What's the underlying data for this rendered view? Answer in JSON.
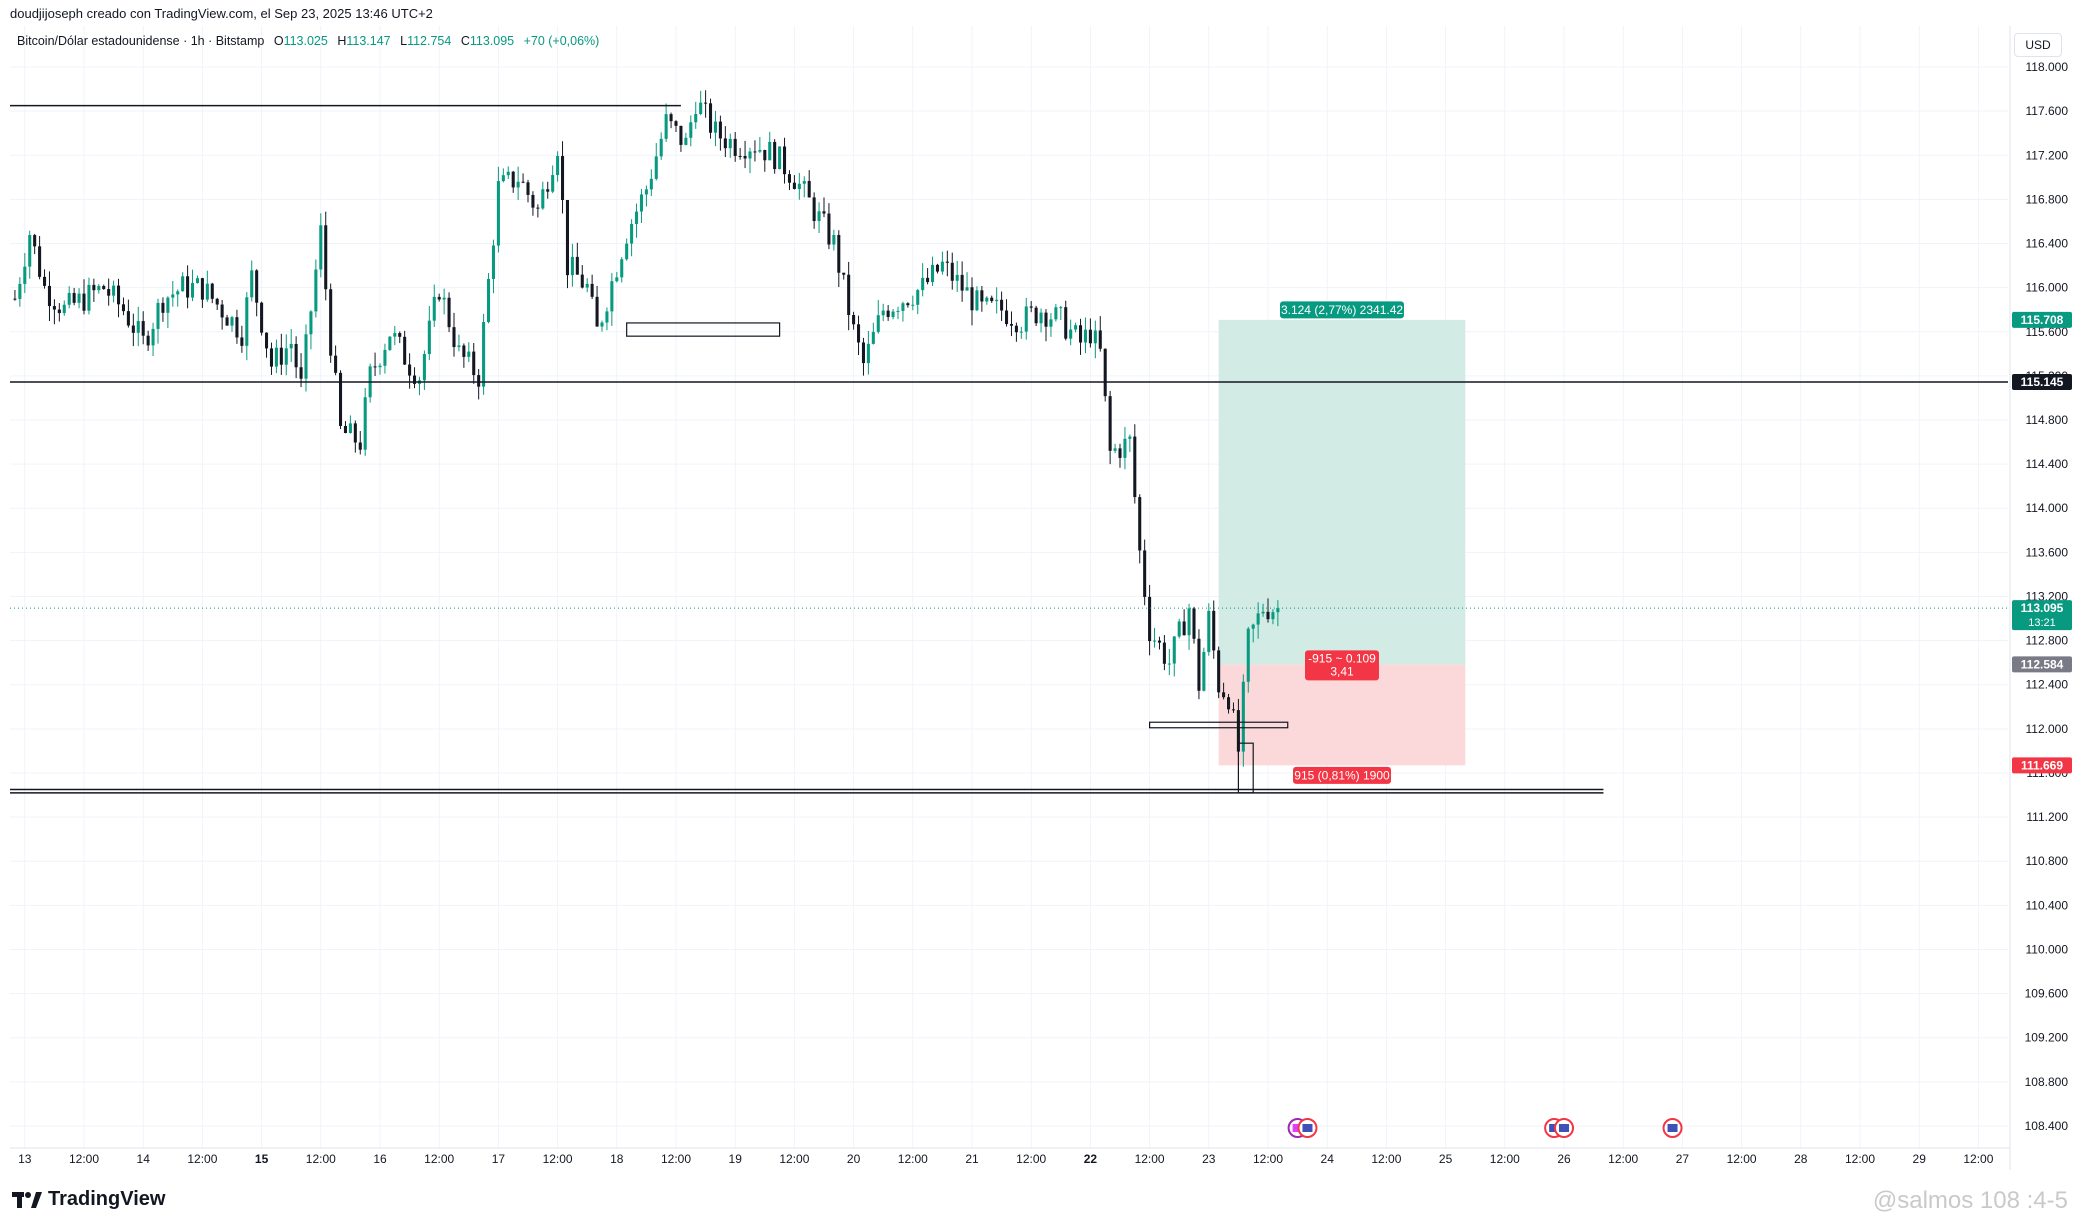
{
  "header": {
    "credit": "doudjijoseph creado con TradingView.com, el Sep 23, 2025 13:46 UTC+2"
  },
  "legend": {
    "symbol": "Bitcoin/Dólar estadounidense · 1h · Bitstamp",
    "open_label": "O",
    "open": "113.025",
    "high_label": "H",
    "high": "113.147",
    "low_label": "L",
    "low": "112.754",
    "close_label": "C",
    "close": "113.095",
    "change": "+70 (+0,06%)"
  },
  "currency": "USD",
  "chart_data": {
    "type": "candlestick",
    "y_ticks": [
      "118.000",
      "117.600",
      "117.200",
      "116.800",
      "116.400",
      "116.000",
      "115.600",
      "115.200",
      "114.800",
      "114.400",
      "114.000",
      "113.600",
      "113.200",
      "112.800",
      "112.400",
      "112.000",
      "111.600",
      "111.200",
      "110.800",
      "110.400",
      "110.000",
      "109.600",
      "109.200",
      "108.800",
      "108.400"
    ],
    "y_tick_values": [
      118000,
      117600,
      117200,
      116800,
      116400,
      116000,
      115600,
      115200,
      114800,
      114400,
      114000,
      113600,
      113200,
      112800,
      112400,
      112000,
      111600,
      111200,
      110800,
      110400,
      110000,
      109600,
      109200,
      108800,
      108400
    ],
    "x_ticks": [
      {
        "label": "13",
        "bold": false,
        "t": 0
      },
      {
        "label": "12:00",
        "bold": false,
        "t": 12
      },
      {
        "label": "14",
        "bold": false,
        "t": 24
      },
      {
        "label": "12:00",
        "bold": false,
        "t": 36
      },
      {
        "label": "15",
        "bold": true,
        "t": 48
      },
      {
        "label": "12:00",
        "bold": false,
        "t": 60
      },
      {
        "label": "16",
        "bold": false,
        "t": 72
      },
      {
        "label": "12:00",
        "bold": false,
        "t": 84
      },
      {
        "label": "17",
        "bold": false,
        "t": 96
      },
      {
        "label": "12:00",
        "bold": false,
        "t": 108
      },
      {
        "label": "18",
        "bold": false,
        "t": 120
      },
      {
        "label": "12:00",
        "bold": false,
        "t": 132
      },
      {
        "label": "19",
        "bold": false,
        "t": 144
      },
      {
        "label": "12:00",
        "bold": false,
        "t": 156
      },
      {
        "label": "20",
        "bold": false,
        "t": 168
      },
      {
        "label": "12:00",
        "bold": false,
        "t": 180
      },
      {
        "label": "21",
        "bold": false,
        "t": 192
      },
      {
        "label": "12:00",
        "bold": false,
        "t": 204
      },
      {
        "label": "22",
        "bold": true,
        "t": 216
      },
      {
        "label": "12:00",
        "bold": false,
        "t": 228
      },
      {
        "label": "23",
        "bold": false,
        "t": 240
      },
      {
        "label": "12:00",
        "bold": false,
        "t": 252
      },
      {
        "label": "24",
        "bold": false,
        "t": 264
      },
      {
        "label": "12:00",
        "bold": false,
        "t": 276
      },
      {
        "label": "25",
        "bold": false,
        "t": 288
      },
      {
        "label": "12:00",
        "bold": false,
        "t": 300
      },
      {
        "label": "26",
        "bold": false,
        "t": 312
      },
      {
        "label": "12:00",
        "bold": false,
        "t": 324
      },
      {
        "label": "27",
        "bold": false,
        "t": 336
      },
      {
        "label": "12:00",
        "bold": false,
        "t": 348
      },
      {
        "label": "28",
        "bold": false,
        "t": 360
      },
      {
        "label": "12:00",
        "bold": false,
        "t": 372
      },
      {
        "label": "29",
        "bold": false,
        "t": 384
      },
      {
        "label": "12:00",
        "bold": false,
        "t": 396
      }
    ],
    "x_range": [
      -3,
      402
    ],
    "y_range": [
      108200,
      118100
    ],
    "price_path": [
      [
        -2,
        115900
      ],
      [
        1,
        116500
      ],
      [
        4,
        116000
      ],
      [
        8,
        115800
      ],
      [
        12,
        115900
      ],
      [
        16,
        116000
      ],
      [
        20,
        115800
      ],
      [
        24,
        115500
      ],
      [
        28,
        115900
      ],
      [
        32,
        116000
      ],
      [
        36,
        116000
      ],
      [
        40,
        115800
      ],
      [
        44,
        115600
      ],
      [
        46,
        116100
      ],
      [
        50,
        115300
      ],
      [
        54,
        115500
      ],
      [
        56,
        115100
      ],
      [
        60,
        116500
      ],
      [
        62,
        115500
      ],
      [
        64,
        114700
      ],
      [
        68,
        114600
      ],
      [
        70,
        115200
      ],
      [
        74,
        115600
      ],
      [
        78,
        115300
      ],
      [
        80,
        115200
      ],
      [
        84,
        116000
      ],
      [
        88,
        115400
      ],
      [
        92,
        115200
      ],
      [
        96,
        116900
      ],
      [
        100,
        117000
      ],
      [
        104,
        116700
      ],
      [
        108,
        117300
      ],
      [
        110,
        116200
      ],
      [
        114,
        116000
      ],
      [
        116,
        115600
      ],
      [
        118,
        115900
      ],
      [
        122,
        116500
      ],
      [
        126,
        116900
      ],
      [
        130,
        117500
      ],
      [
        134,
        117300
      ],
      [
        136,
        117700
      ],
      [
        140,
        117400
      ],
      [
        144,
        117300
      ],
      [
        148,
        117300
      ],
      [
        152,
        117200
      ],
      [
        156,
        117000
      ],
      [
        160,
        116700
      ],
      [
        164,
        116400
      ],
      [
        168,
        115600
      ],
      [
        170,
        115300
      ],
      [
        174,
        115800
      ],
      [
        178,
        115900
      ],
      [
        182,
        116000
      ],
      [
        186,
        116200
      ],
      [
        190,
        116000
      ],
      [
        194,
        115800
      ],
      [
        198,
        115800
      ],
      [
        202,
        115700
      ],
      [
        206,
        115800
      ],
      [
        210,
        115700
      ],
      [
        214,
        115500
      ],
      [
        216,
        115600
      ],
      [
        218,
        115400
      ],
      [
        220,
        114500
      ],
      [
        224,
        114600
      ],
      [
        226,
        113600
      ],
      [
        228,
        112900
      ],
      [
        232,
        112600
      ],
      [
        236,
        113100
      ],
      [
        238,
        112400
      ],
      [
        240,
        113000
      ],
      [
        242,
        112400
      ],
      [
        244,
        112300
      ],
      [
        246,
        111800
      ],
      [
        248,
        112800
      ],
      [
        251,
        113100
      ],
      [
        254,
        113095
      ]
    ],
    "current_price": 113095,
    "current_price_label": "113.095",
    "countdown": "13:21",
    "horizontal_lines": [
      {
        "price": 117650,
        "t_start": -3,
        "t_end": 133
      },
      {
        "price": 115145,
        "t_start": -3,
        "t_end": 402
      },
      {
        "price": 111420,
        "t_start": -3,
        "t_end": 320
      },
      {
        "price": 111450,
        "t_start": -3,
        "t_end": 320
      }
    ],
    "rectangles": [
      {
        "t_start": 122,
        "t_end": 153,
        "p_top": 115680,
        "p_bottom": 115560
      },
      {
        "t_start": 228,
        "t_end": 256,
        "p_top": 112060,
        "p_bottom": 112010
      },
      {
        "t_start": 246,
        "t_end": 249,
        "p_top": 111870,
        "p_bottom": 111420
      }
    ],
    "position": {
      "t_start": 242,
      "t_end": 292,
      "target": 115708,
      "entry": 112584,
      "stop": 111669,
      "target_label": "115.708",
      "entry_label": "112.584",
      "stop_label": "111.669",
      "target_text": "3.124 (2,77%) 2341.42",
      "mid_text_line1": "-915 ~ 0.109",
      "mid_text_line2": "3,41",
      "stop_text": "915 (0,81%) 1900"
    },
    "level_label": "115.145",
    "event_icons_t": [
      258,
      260,
      310,
      312,
      334
    ]
  },
  "brand": {
    "name": "TradingView"
  },
  "watermark": "@salmos 108 :4-5",
  "colors": {
    "up": "#089981",
    "down": "#131722",
    "target_fill": "#d2ece5",
    "stop_fill": "#fbd9db",
    "target_tag": "#089981",
    "stop_tag": "#f23645",
    "entry_tag": "#787b86",
    "grid": "#f0f3fa"
  }
}
